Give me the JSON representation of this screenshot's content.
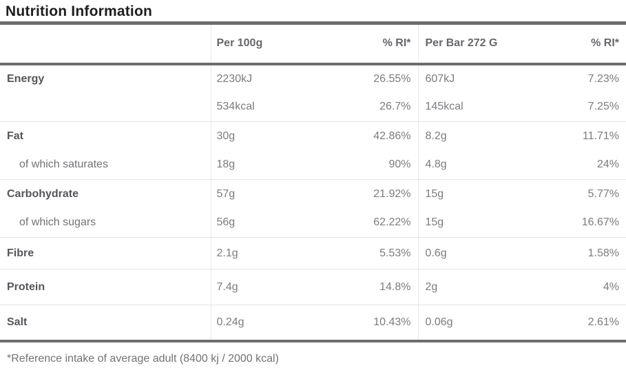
{
  "title": "Nutrition Information",
  "footnote": "*Reference intake of average adult (8400 kj / 2000 kcal)",
  "colors": {
    "rule_heavy": "#6d6d6d",
    "rule_light": "#e3e3e3",
    "divider_vertical": "#e9e9e9",
    "title_text": "#1e1e1e",
    "header_text": "#66676b",
    "label_text": "#55565a",
    "value_text": "#7b7c7f"
  },
  "table": {
    "columns": [
      "",
      "Per 100g",
      "% RI*",
      "Per Bar 272 G",
      "% RI*"
    ],
    "groups": [
      {
        "rows": [
          {
            "label": "Energy",
            "per100g": "2230kJ",
            "ri100g": "26.55%",
            "perbar": "607kJ",
            "ribar": "7.23%"
          },
          {
            "label": "",
            "per100g": "534kcal",
            "ri100g": "26.7%",
            "perbar": "145kcal",
            "ribar": "7.25%"
          }
        ]
      },
      {
        "rows": [
          {
            "label": "Fat",
            "per100g": "30g",
            "ri100g": "42.86%",
            "perbar": "8.2g",
            "ribar": "11.71%"
          },
          {
            "label": "of which saturates",
            "per100g": "18g",
            "ri100g": "90%",
            "perbar": "4.8g",
            "ribar": "24%"
          }
        ]
      },
      {
        "rows": [
          {
            "label": "Carbohydrate",
            "per100g": "57g",
            "ri100g": "21.92%",
            "perbar": "15g",
            "ribar": "5.77%"
          },
          {
            "label": "of which sugars",
            "per100g": "56g",
            "ri100g": "62.22%",
            "perbar": "15g",
            "ribar": "16.67%"
          }
        ]
      },
      {
        "rows": [
          {
            "label": "Fibre",
            "per100g": "2.1g",
            "ri100g": "5.53%",
            "perbar": "0.6g",
            "ribar": "1.58%"
          }
        ]
      },
      {
        "rows": [
          {
            "label": "Protein",
            "per100g": "7.4g",
            "ri100g": "14.8%",
            "perbar": "2g",
            "ribar": "4%"
          }
        ]
      },
      {
        "rows": [
          {
            "label": "Salt",
            "per100g": "0.24g",
            "ri100g": "10.43%",
            "perbar": "0.06g",
            "ribar": "2.61%"
          }
        ]
      }
    ]
  }
}
